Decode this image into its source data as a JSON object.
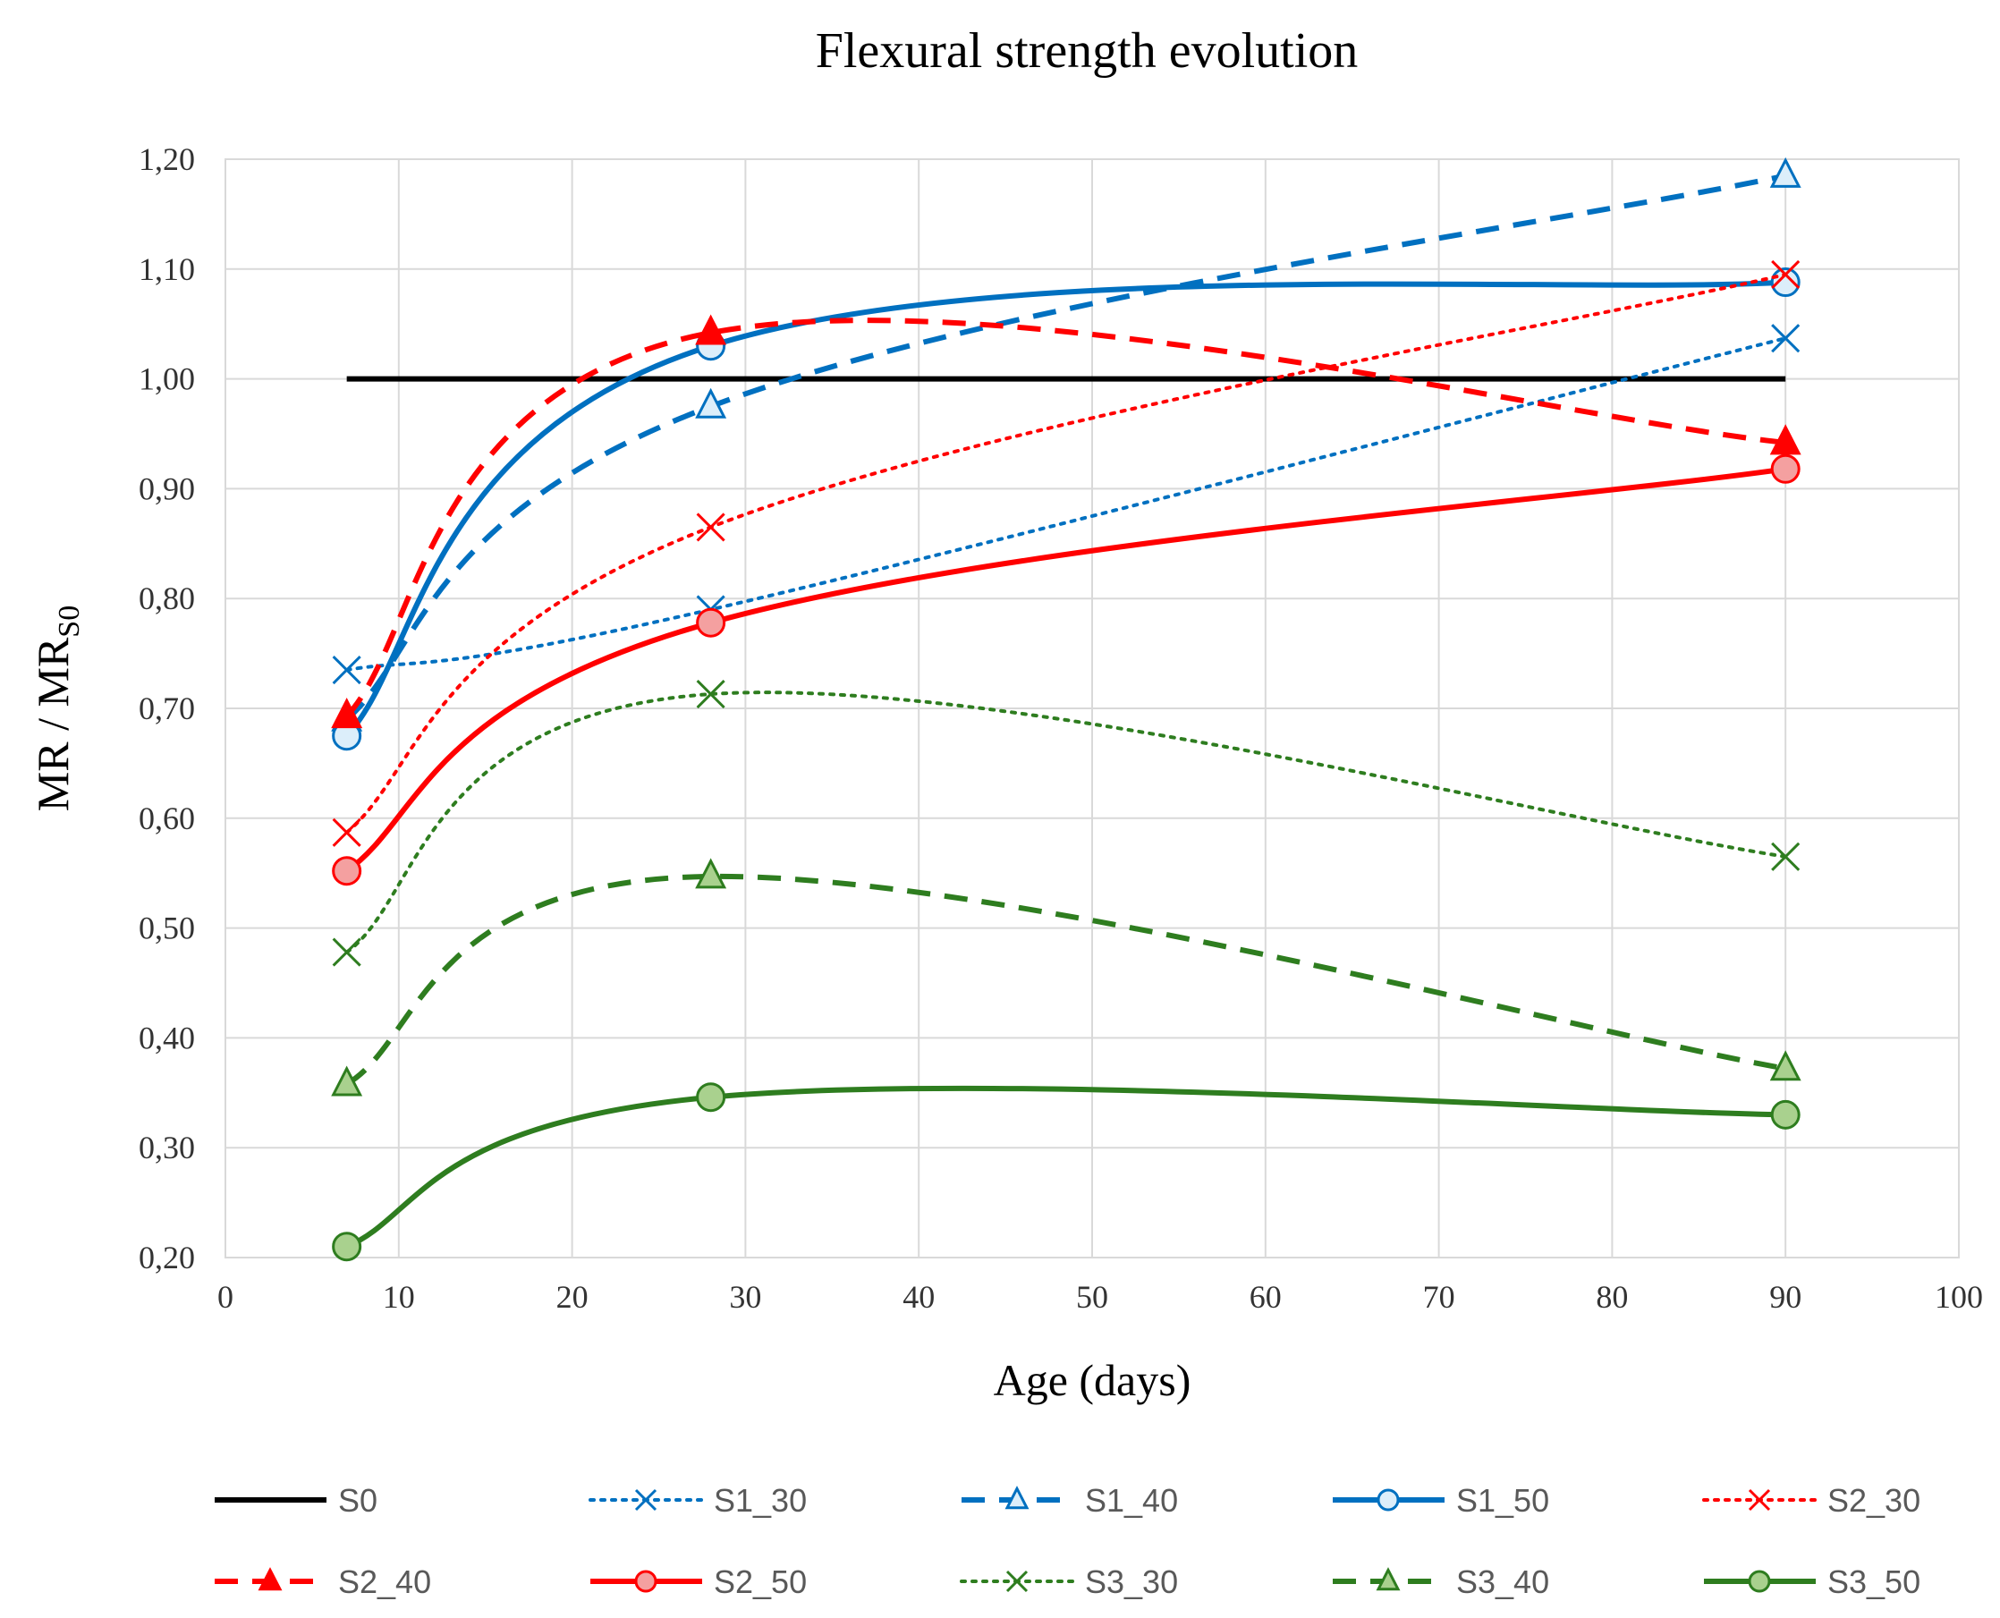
{
  "chart_data": {
    "type": "line",
    "title": "Flexural strength evolution",
    "xlabel": "Age (days)",
    "ylabel_main": "MR / MR",
    "ylabel_sub": "S0",
    "xlim": [
      0,
      100
    ],
    "ylim": [
      0.2,
      1.2
    ],
    "x_ticks": [
      "0",
      "10",
      "20",
      "30",
      "40",
      "50",
      "60",
      "70",
      "80",
      "90",
      "100"
    ],
    "y_ticks": [
      "1,20",
      "1,10",
      "1,00",
      "0,90",
      "0,80",
      "0,70",
      "0,60",
      "0,50",
      "0,40",
      "0,30",
      "0,20"
    ],
    "grid": true,
    "legend_position": "bottom",
    "series": [
      {
        "name": "S0",
        "x": [
          7,
          90
        ],
        "y": [
          1.0,
          1.0
        ],
        "color": "#000000",
        "dash": "solid",
        "marker": "none",
        "smooth": false
      },
      {
        "name": "S1_30",
        "x": [
          7,
          28,
          90
        ],
        "y": [
          0.735,
          0.79,
          1.037
        ],
        "color": "#0070c0",
        "dash": "dot",
        "marker": "x",
        "smooth": true
      },
      {
        "name": "S1_40",
        "x": [
          7,
          28,
          90
        ],
        "y": [
          0.69,
          0.975,
          1.185
        ],
        "color": "#0070c0",
        "dash": "dash",
        "marker": "triangle-open",
        "smooth": true
      },
      {
        "name": "S1_50",
        "x": [
          7,
          28,
          90
        ],
        "y": [
          0.675,
          1.03,
          1.088
        ],
        "color": "#0070c0",
        "dash": "solid",
        "marker": "circle-open",
        "smooth": true
      },
      {
        "name": "S2_30",
        "x": [
          7,
          28,
          90
        ],
        "y": [
          0.587,
          0.865,
          1.095
        ],
        "color": "#ff0000",
        "dash": "dot",
        "marker": "x",
        "smooth": true
      },
      {
        "name": "S2_40",
        "x": [
          7,
          28,
          90
        ],
        "y": [
          0.693,
          1.042,
          0.942
        ],
        "color": "#ff0000",
        "dash": "dash",
        "marker": "triangle-filled",
        "smooth": true
      },
      {
        "name": "S2_50",
        "x": [
          7,
          28,
          90
        ],
        "y": [
          0.552,
          0.778,
          0.918
        ],
        "color": "#ff0000",
        "dash": "solid",
        "marker": "circle-filled",
        "smooth": true
      },
      {
        "name": "S3_30",
        "x": [
          7,
          28,
          90
        ],
        "y": [
          0.478,
          0.713,
          0.565
        ],
        "color": "#2e7d1f",
        "dash": "dot",
        "marker": "x",
        "smooth": true
      },
      {
        "name": "S3_40",
        "x": [
          7,
          28,
          90
        ],
        "y": [
          0.358,
          0.547,
          0.372
        ],
        "color": "#2e7d1f",
        "dash": "dash",
        "marker": "triangle-filled",
        "smooth": true
      },
      {
        "name": "S3_50",
        "x": [
          7,
          28,
          90
        ],
        "y": [
          0.21,
          0.346,
          0.33
        ],
        "color": "#2e7d1f",
        "dash": "solid",
        "marker": "circle-filled",
        "smooth": true
      }
    ],
    "marker_fills": {
      "#0070c0": "#dceefa",
      "#ff0000": "#f4a0a0",
      "#2e7d1f": "#a9d18e",
      "#000000": "#000000"
    }
  }
}
